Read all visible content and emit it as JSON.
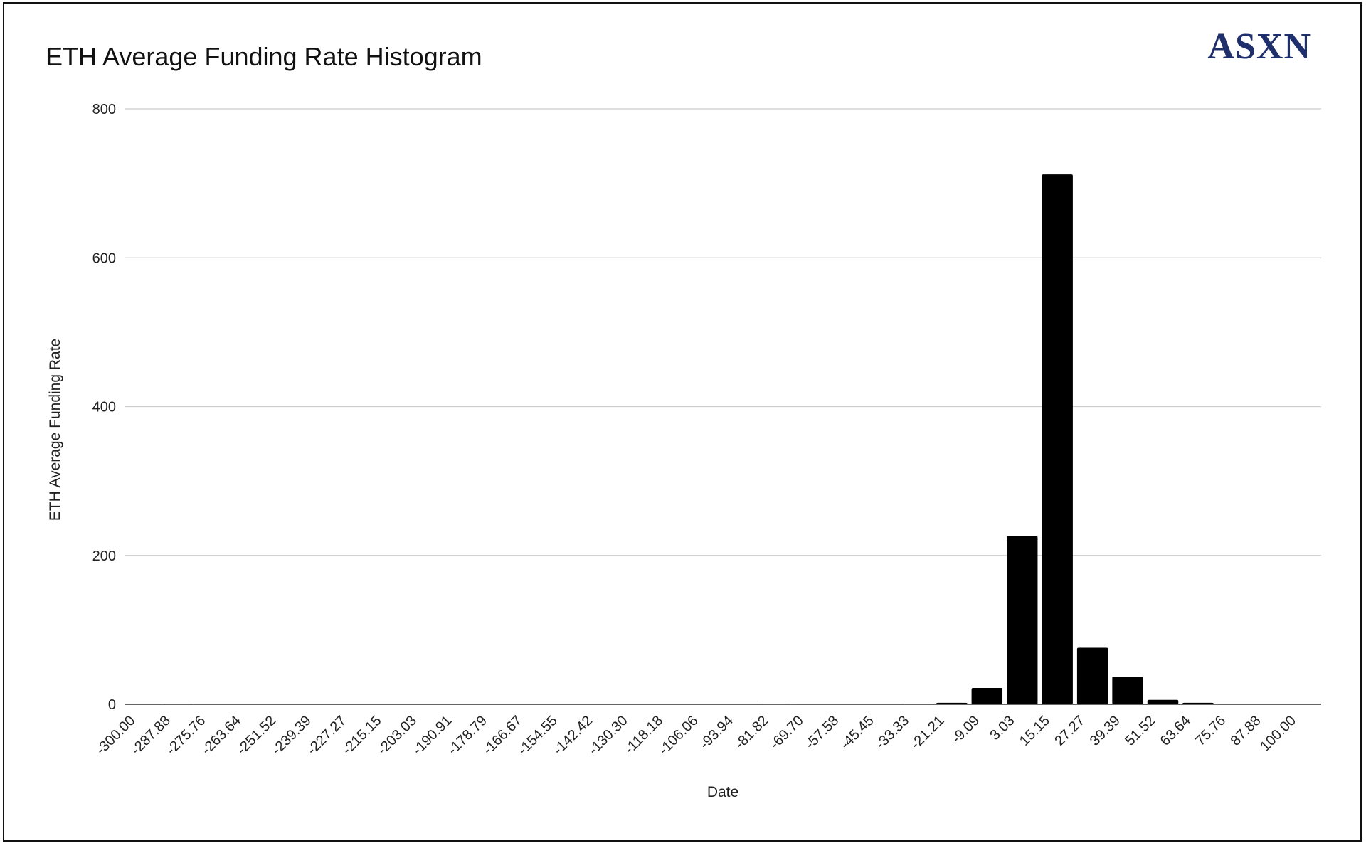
{
  "brand": {
    "logo_text": "ASXN"
  },
  "chart_data": {
    "type": "bar",
    "title": "ETH Average Funding Rate Histogram",
    "xlabel": "Date",
    "ylabel": "ETH Average Funding Rate",
    "ylim": [
      0,
      800
    ],
    "yticks": [
      "0",
      "200",
      "400",
      "600",
      "800"
    ],
    "grid": true,
    "legend": "none",
    "bar_color": "#000000",
    "categories": [
      "-300.00",
      "-287.88",
      "-275.76",
      "-263.64",
      "-251.52",
      "-239.39",
      "-227.27",
      "-215.15",
      "-203.03",
      "-190.91",
      "-178.79",
      "-166.67",
      "-154.55",
      "-142.42",
      "-130.30",
      "-118.18",
      "-106.06",
      "-93.94",
      "-81.82",
      "-69.70",
      "-57.58",
      "-45.45",
      "-33.33",
      "-21.21",
      "-9.09",
      "3.03",
      "15.15",
      "27.27",
      "39.39",
      "51.52",
      "63.64",
      "75.76",
      "87.88",
      "100.00"
    ],
    "values": [
      0,
      1,
      0,
      0,
      0,
      0,
      0,
      0,
      0,
      0,
      0,
      0,
      0,
      0,
      0,
      0,
      0,
      0,
      1,
      0,
      0,
      0,
      1,
      2,
      22,
      226,
      712,
      76,
      37,
      6,
      2,
      0,
      0,
      0
    ]
  }
}
